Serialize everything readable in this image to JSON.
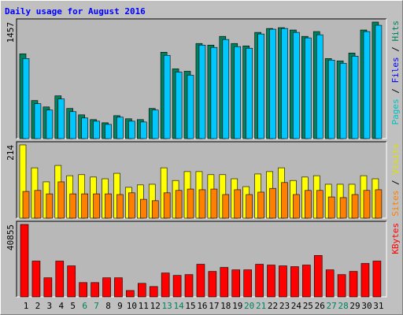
{
  "chart_data": [
    {
      "type": "bar",
      "title": "Daily usage for August 2016",
      "categories": [
        "1",
        "2",
        "3",
        "4",
        "5",
        "6",
        "7",
        "8",
        "9",
        "10",
        "11",
        "12",
        "13",
        "14",
        "15",
        "16",
        "17",
        "18",
        "19",
        "20",
        "21",
        "22",
        "23",
        "24",
        "25",
        "26",
        "27",
        "28",
        "29",
        "30",
        "31"
      ],
      "category_colors": [
        "#000000",
        "#000000",
        "#000000",
        "#000000",
        "#000000",
        "#00805c",
        "#00805c",
        "#000000",
        "#000000",
        "#000000",
        "#000000",
        "#000000",
        "#00805c",
        "#00805c",
        "#000000",
        "#000000",
        "#000000",
        "#000000",
        "#000000",
        "#00805c",
        "#00805c",
        "#000000",
        "#000000",
        "#000000",
        "#000000",
        "#000000",
        "#00805c",
        "#00805c",
        "#000000",
        "#000000",
        "#000000"
      ],
      "ylim": [
        0,
        1457
      ],
      "yticks": [
        1457
      ],
      "side_label": [
        {
          "text": "Pages",
          "color": "#00c0c0"
        },
        {
          "text": " / ",
          "color": "#000000"
        },
        {
          "text": "Files",
          "color": "#0000ff"
        },
        {
          "text": " / ",
          "color": "#000000"
        },
        {
          "text": "Hits",
          "color": "#00805c"
        }
      ],
      "series": [
        {
          "name": "Hits",
          "color": "#00805c",
          "values": [
            1060,
            476,
            396,
            535,
            377,
            297,
            238,
            198,
            287,
            248,
            238,
            377,
            1080,
            872,
            842,
            1189,
            1169,
            1278,
            1189,
            1159,
            1328,
            1377,
            1387,
            1358,
            1278,
            1338,
            1001,
            971,
            1070,
            1358,
            1457
          ]
        },
        {
          "name": "Files",
          "color": "#00c8ff",
          "values": [
            1001,
            436,
            357,
            496,
            337,
            258,
            218,
            178,
            268,
            218,
            208,
            357,
            1041,
            832,
            793,
            1169,
            1140,
            1239,
            1150,
            1130,
            1308,
            1368,
            1377,
            1328,
            1259,
            1298,
            981,
            941,
            1031,
            1338,
            1417
          ]
        }
      ]
    },
    {
      "type": "bar",
      "ylim": [
        0,
        214
      ],
      "yticks": [
        214
      ],
      "side_label": [
        {
          "text": "Sites",
          "color": "#ff8000"
        },
        {
          "text": " / ",
          "color": "#000000"
        },
        {
          "text": "Visits",
          "color": "#e0e000"
        }
      ],
      "series": [
        {
          "name": "Visits",
          "color": "#ffff00",
          "values": [
            214,
            147,
            106,
            154,
            124,
            127,
            120,
            115,
            131,
            90,
            97,
            99,
            147,
            110,
            136,
            136,
            127,
            127,
            115,
            92,
            129,
            136,
            147,
            110,
            120,
            124,
            99,
            99,
            99,
            124,
            115
          ]
        },
        {
          "name": "Sites",
          "color": "#ff8000",
          "values": [
            78,
            81,
            71,
            106,
            71,
            71,
            71,
            71,
            69,
            74,
            55,
            51,
            74,
            81,
            85,
            83,
            85,
            69,
            83,
            69,
            76,
            87,
            104,
            69,
            81,
            81,
            62,
            60,
            69,
            81,
            83
          ]
        }
      ]
    },
    {
      "type": "bar",
      "ylim": [
        0,
        40855
      ],
      "yticks": [
        40855
      ],
      "side_label": [
        {
          "text": "KBytes",
          "color": "#ff0000"
        }
      ],
      "series": [
        {
          "name": "KBytes",
          "color": "#ff0000",
          "values": [
            40855,
            20205,
            10776,
            20205,
            17511,
            8082,
            8082,
            10776,
            10776,
            3592,
            7633,
            5837,
            13470,
            12123,
            12572,
            18409,
            14368,
            16613,
            15266,
            15266,
            18409,
            17960,
            17511,
            17062,
            17960,
            23348,
            15266,
            12572,
            14368,
            18858,
            20205
          ]
        }
      ]
    }
  ]
}
